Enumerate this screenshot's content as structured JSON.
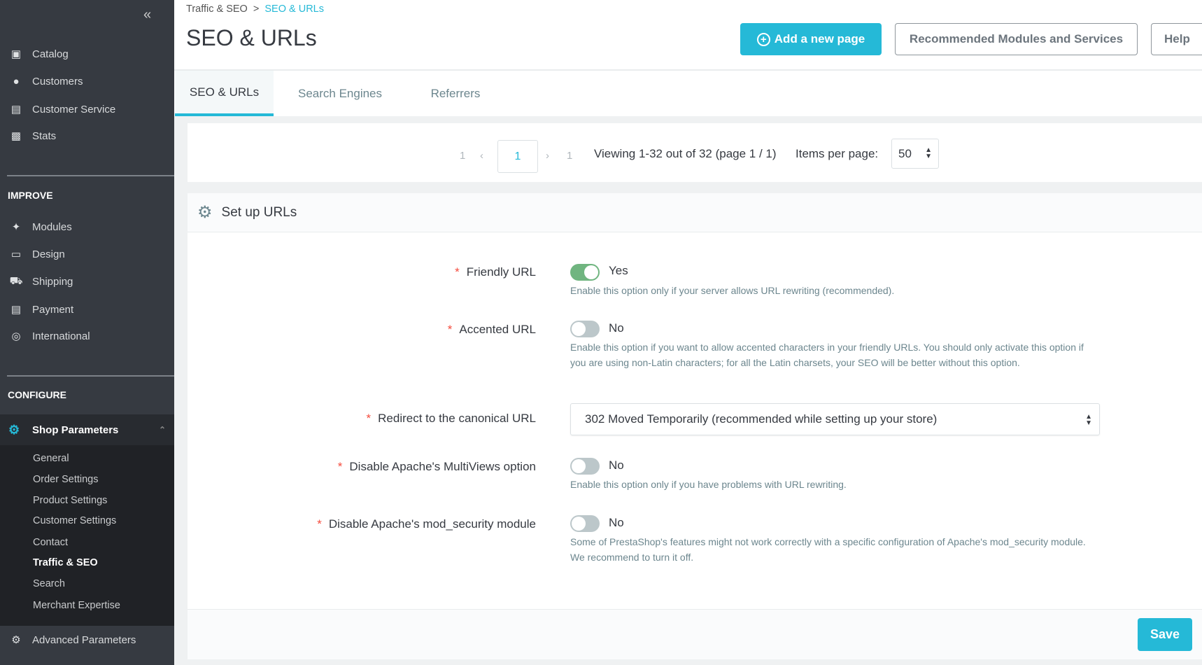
{
  "sidebar": {
    "collapse_icon": "double-chevron-left",
    "top_items": [
      {
        "label": "Catalog",
        "icon": "store"
      },
      {
        "label": "Customers",
        "icon": "user-circle"
      },
      {
        "label": "Customer Service",
        "icon": "chat"
      },
      {
        "label": "Stats",
        "icon": "bar-chart"
      }
    ],
    "improve": {
      "heading": "IMPROVE",
      "items": [
        {
          "label": "Modules",
          "icon": "puzzle"
        },
        {
          "label": "Design",
          "icon": "monitor"
        },
        {
          "label": "Shipping",
          "icon": "truck"
        },
        {
          "label": "Payment",
          "icon": "credit-card"
        },
        {
          "label": "International",
          "icon": "globe"
        }
      ]
    },
    "configure": {
      "heading": "CONFIGURE",
      "shop_parameters": {
        "label": "Shop Parameters",
        "icon": "gear",
        "accent": "#25b9d7"
      },
      "sub_items": [
        "General",
        "Order Settings",
        "Product Settings",
        "Customer Settings",
        "Contact",
        "Traffic & SEO",
        "Search",
        "Merchant Expertise"
      ],
      "active_sub": "Traffic & SEO",
      "advanced": {
        "label": "Advanced Parameters",
        "icon": "gear-box"
      }
    }
  },
  "header": {
    "breadcrumb": {
      "parent": "Traffic & SEO",
      "separator": ">",
      "current": "SEO & URLs"
    },
    "title": "SEO & URLs",
    "add_button": "Add a new page",
    "recommended_button": "Recommended Modules and Services",
    "help_button": "Help",
    "tabs": [
      "SEO & URLs",
      "Search Engines",
      "Referrers"
    ],
    "active_tab": "SEO & URLs"
  },
  "pagination": {
    "first": "1",
    "current": "1",
    "last": "1",
    "viewing": "Viewing 1-32 out of 32 (page 1 / 1)",
    "items_per_page_label": "Items per page:",
    "items_per_page": "50"
  },
  "setup": {
    "title": "Set up URLs",
    "fields": [
      {
        "label": "Friendly URL",
        "value": "Yes",
        "on": true,
        "help": "Enable this option only if your server allows URL rewriting (recommended)."
      },
      {
        "label": "Accented URL",
        "value": "No",
        "on": false,
        "help": "Enable this option if you want to allow accented characters in your friendly URLs. You should only activate this option if you are using non-Latin characters; for all the Latin charsets, your SEO will be better without this option."
      },
      {
        "label": "Redirect to the canonical URL",
        "value": "302 Moved Temporarily (recommended while setting up your store)"
      },
      {
        "label": "Disable Apache's MultiViews option",
        "value": "No",
        "on": false,
        "help": "Enable this option only if you have problems with URL rewriting."
      },
      {
        "label": "Disable Apache's mod_security module",
        "value": "No",
        "on": false,
        "help": "Some of PrestaShop's features might not work correctly with a specific configuration of Apache's mod_security module. We recommend to turn it off."
      }
    ],
    "save": "Save"
  },
  "colors": {
    "primary": "#25b9d7",
    "toggle_on": "#70b580",
    "required": "#f54c3e",
    "sidebar": "#363a41"
  }
}
